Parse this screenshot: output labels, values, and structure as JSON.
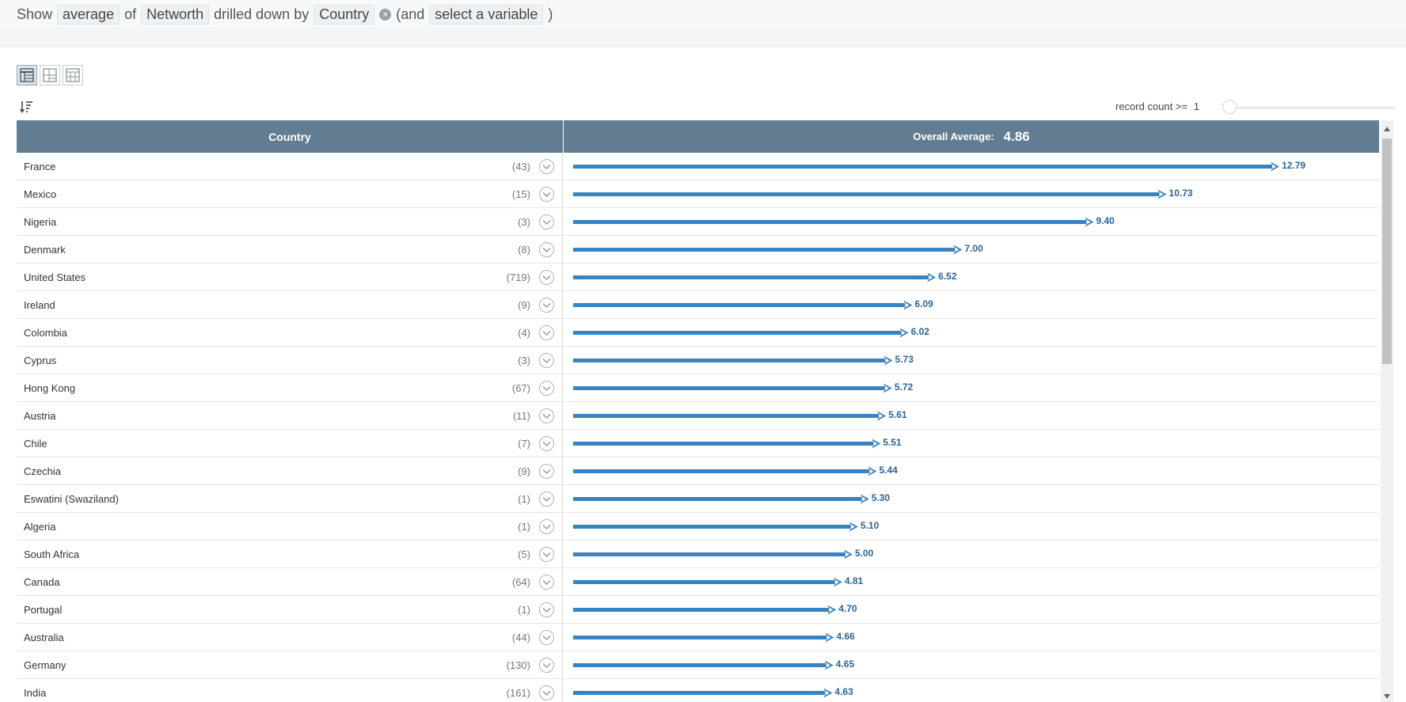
{
  "query": {
    "show_label": "Show",
    "aggregate": "average",
    "of_label": "of",
    "measure": "Networth",
    "drilled_label": "drilled down by",
    "dimension": "Country",
    "and_label": "(and",
    "add_variable": "select a variable",
    "close_paren": ")"
  },
  "toolbar": {
    "view_icons": [
      "table-view-icon",
      "split-view-icon",
      "pivot-view-icon"
    ],
    "active_view": 0,
    "sort_icon": "sort-descending-icon"
  },
  "filter": {
    "record_count_label": "record count >=",
    "record_count_value": "1"
  },
  "table": {
    "col_country": "Country",
    "overall_label": "Overall Average:",
    "overall_value": "4.86"
  },
  "colors": {
    "header_bg": "#627d91",
    "bar": "#3a82c0",
    "value_text": "#2b6597"
  },
  "chart_data": {
    "type": "bar",
    "orientation": "horizontal",
    "xlim": [
      0,
      13.6
    ],
    "rows": [
      {
        "country": "France",
        "count": "(43)",
        "value": 12.79,
        "label": "12.79"
      },
      {
        "country": "Mexico",
        "count": "(15)",
        "value": 10.73,
        "label": "10.73"
      },
      {
        "country": "Nigeria",
        "count": "(3)",
        "value": 9.4,
        "label": "9.40"
      },
      {
        "country": "Denmark",
        "count": "(8)",
        "value": 7.0,
        "label": "7.00"
      },
      {
        "country": "United States",
        "count": "(719)",
        "value": 6.52,
        "label": "6.52"
      },
      {
        "country": "Ireland",
        "count": "(9)",
        "value": 6.09,
        "label": "6.09"
      },
      {
        "country": "Colombia",
        "count": "(4)",
        "value": 6.02,
        "label": "6.02"
      },
      {
        "country": "Cyprus",
        "count": "(3)",
        "value": 5.73,
        "label": "5.73"
      },
      {
        "country": "Hong Kong",
        "count": "(67)",
        "value": 5.72,
        "label": "5.72"
      },
      {
        "country": "Austria",
        "count": "(11)",
        "value": 5.61,
        "label": "5.61"
      },
      {
        "country": "Chile",
        "count": "(7)",
        "value": 5.51,
        "label": "5.51"
      },
      {
        "country": "Czechia",
        "count": "(9)",
        "value": 5.44,
        "label": "5.44"
      },
      {
        "country": "Eswatini (Swaziland)",
        "count": "(1)",
        "value": 5.3,
        "label": "5.30"
      },
      {
        "country": "Algeria",
        "count": "(1)",
        "value": 5.1,
        "label": "5.10"
      },
      {
        "country": "South Africa",
        "count": "(5)",
        "value": 5.0,
        "label": "5.00"
      },
      {
        "country": "Canada",
        "count": "(64)",
        "value": 4.81,
        "label": "4.81"
      },
      {
        "country": "Portugal",
        "count": "(1)",
        "value": 4.7,
        "label": "4.70"
      },
      {
        "country": "Australia",
        "count": "(44)",
        "value": 4.66,
        "label": "4.66"
      },
      {
        "country": "Germany",
        "count": "(130)",
        "value": 4.65,
        "label": "4.65"
      },
      {
        "country": "India",
        "count": "(161)",
        "value": 4.63,
        "label": "4.63"
      }
    ]
  }
}
